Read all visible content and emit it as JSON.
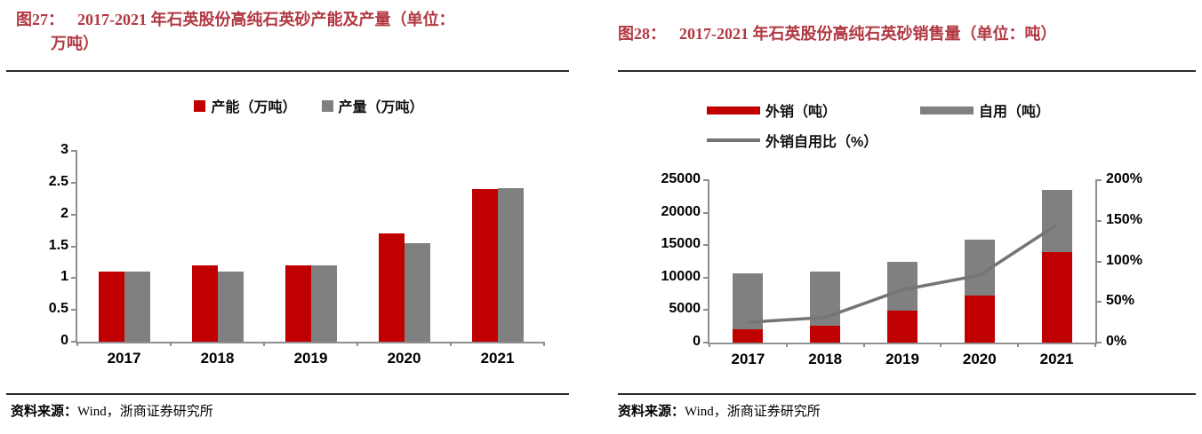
{
  "colors": {
    "bar_red": "#c00000",
    "bar_gray": "#808080",
    "line_gray": "#757575",
    "title_red": "#b23842",
    "axis_gray": "#8f8f8f",
    "rule_dark": "#2b2b2b",
    "text_black": "#000000"
  },
  "left_panel": {
    "figure_label": "图27：",
    "title": "2017-2021 年石英股份高纯石英砂产能及产量（单位：万吨）",
    "source_label": "资料来源：",
    "source_text": "Wind，浙商证券研究所",
    "chart_data": {
      "type": "bar",
      "title": "2017-2021 年石英股份高纯石英砂产能及产量",
      "unit": "万吨",
      "categories": [
        "2017",
        "2018",
        "2019",
        "2020",
        "2021"
      ],
      "series": [
        {
          "name": "产能（万吨）",
          "color_key": "bar_red",
          "values": [
            1.1,
            1.2,
            1.2,
            1.7,
            2.4
          ]
        },
        {
          "name": "产量（万吨）",
          "color_key": "bar_gray",
          "values": [
            1.1,
            1.1,
            1.2,
            1.55,
            2.42
          ]
        }
      ],
      "ylim": [
        0,
        3
      ],
      "yticks": [
        "0",
        "0.5",
        "1",
        "1.5",
        "2",
        "2.5",
        "3"
      ],
      "legend_position": "top",
      "grid": false
    }
  },
  "right_panel": {
    "figure_label": "图28：",
    "title": "2017-2021 年石英股份高纯石英砂销售量（单位：吨）",
    "source_label": "资料来源：",
    "source_text": "Wind，浙商证券研究所",
    "chart_data": {
      "type": "stacked-bar+line",
      "title": "2017-2021 年石英股份高纯石英砂销售量",
      "unit": "吨",
      "categories": [
        "2017",
        "2018",
        "2019",
        "2020",
        "2021"
      ],
      "bar_series": [
        {
          "name": "外销（吨）",
          "color_key": "bar_red",
          "values": [
            2100,
            2600,
            4900,
            7200,
            13900
          ]
        },
        {
          "name": "自用（吨）",
          "color_key": "bar_gray",
          "values": [
            8500,
            8400,
            7500,
            8700,
            9600
          ]
        }
      ],
      "line_series": {
        "name": "外销自用比（%）",
        "color_key": "line_gray",
        "axis": "right",
        "values": [
          25,
          31,
          65,
          83,
          145
        ]
      },
      "ylim_left": [
        0,
        25000
      ],
      "yticks_left": [
        "0",
        "5000",
        "10000",
        "15000",
        "20000",
        "25000"
      ],
      "ylim_right": [
        0,
        200
      ],
      "yticks_right": [
        "0%",
        "50%",
        "100%",
        "150%",
        "200%"
      ],
      "legend_position": "top",
      "grid": false
    }
  }
}
